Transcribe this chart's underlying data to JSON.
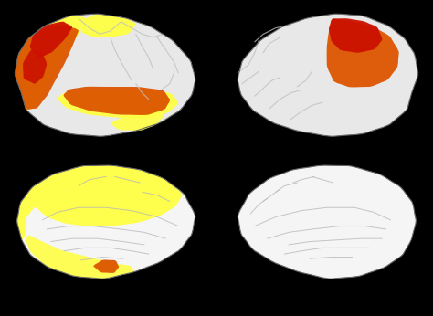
{
  "background_color": "#000000",
  "brain_base_color": "#cccccc",
  "brain_light_color": "#e8e8e8",
  "brain_white_color": "#f5f5f5",
  "yellow_color": "#ffff44",
  "orange_color": "#dd5500",
  "red_color": "#cc1100",
  "figsize": [
    4.74,
    3.46
  ],
  "dpi": 100
}
